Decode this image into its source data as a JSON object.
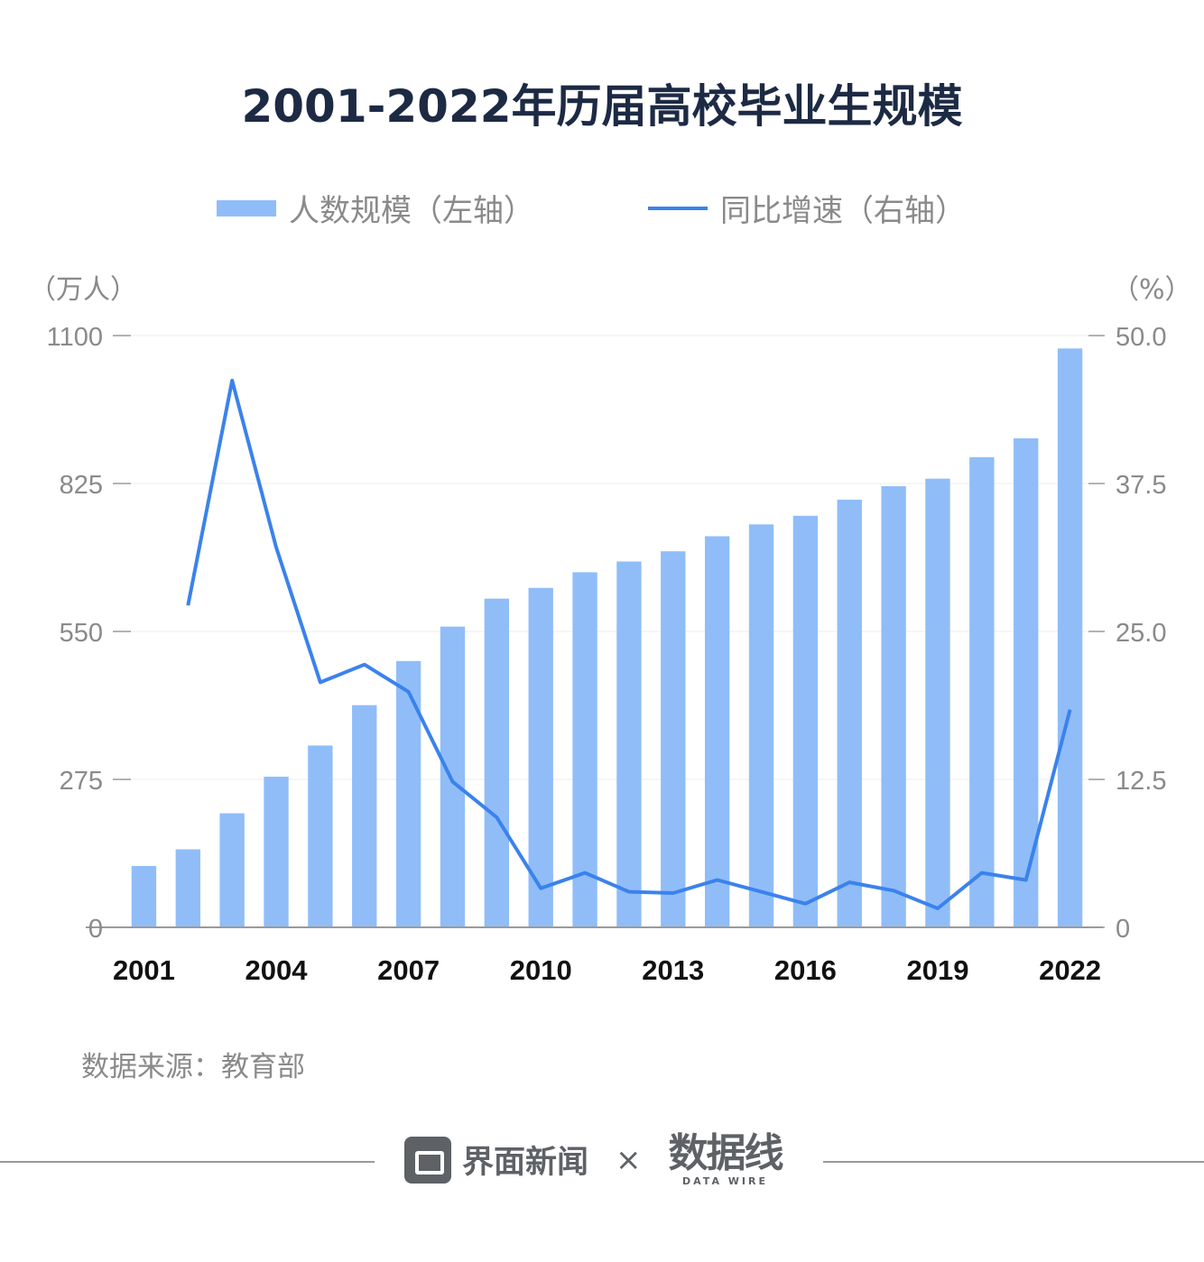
{
  "title": "2001-2022年历届高校毕业生规模",
  "legend": {
    "bar_label": "人数规模（左轴）",
    "line_label": "同比增速（右轴）"
  },
  "left_unit": "（万人）",
  "right_unit": "（%）",
  "source": "数据来源：教育部",
  "footer": {
    "brand": "界面新闻",
    "times": "×",
    "partner_logo": "数据线",
    "partner_sub": "DATA WIRE"
  },
  "colors": {
    "bar": "#90bdf8",
    "line": "#3b82ec",
    "axis": "#9a9a9a",
    "title": "#1d2a44"
  },
  "chart_data": {
    "type": "bar",
    "title": "2001-2022年历届高校毕业生规模",
    "categories": [
      "2001",
      "2002",
      "2003",
      "2004",
      "2005",
      "2006",
      "2007",
      "2008",
      "2009",
      "2010",
      "2011",
      "2012",
      "2013",
      "2014",
      "2015",
      "2016",
      "2017",
      "2018",
      "2019",
      "2020",
      "2021",
      "2022"
    ],
    "x_tick_labels": [
      "2001",
      "2004",
      "2007",
      "2010",
      "2013",
      "2016",
      "2019",
      "2022"
    ],
    "series": [
      {
        "name": "人数规模（左轴）",
        "type": "bar",
        "axis": "left",
        "values": [
          114,
          145,
          212,
          280,
          338,
          413,
          495,
          559,
          611,
          631,
          660,
          680,
          699,
          727,
          749,
          765,
          795,
          820,
          834,
          874,
          909,
          1076
        ]
      },
      {
        "name": "同比增速（右轴）",
        "type": "line",
        "axis": "right",
        "values": [
          null,
          27.2,
          46.2,
          32.1,
          20.7,
          22.2,
          19.9,
          12.3,
          9.3,
          3.3,
          4.6,
          3.0,
          2.9,
          4.0,
          3.0,
          2.0,
          3.8,
          3.1,
          1.6,
          4.6,
          4.0,
          18.4
        ]
      }
    ],
    "left_axis": {
      "ticks": [
        "0",
        "275",
        "550",
        "825",
        "1100"
      ],
      "ylim": [
        0,
        1100
      ]
    },
    "right_axis": {
      "ticks": [
        "0",
        "12.5",
        "25.0",
        "37.5",
        "50.0"
      ],
      "ylim": [
        0,
        50
      ]
    },
    "grid": true
  }
}
